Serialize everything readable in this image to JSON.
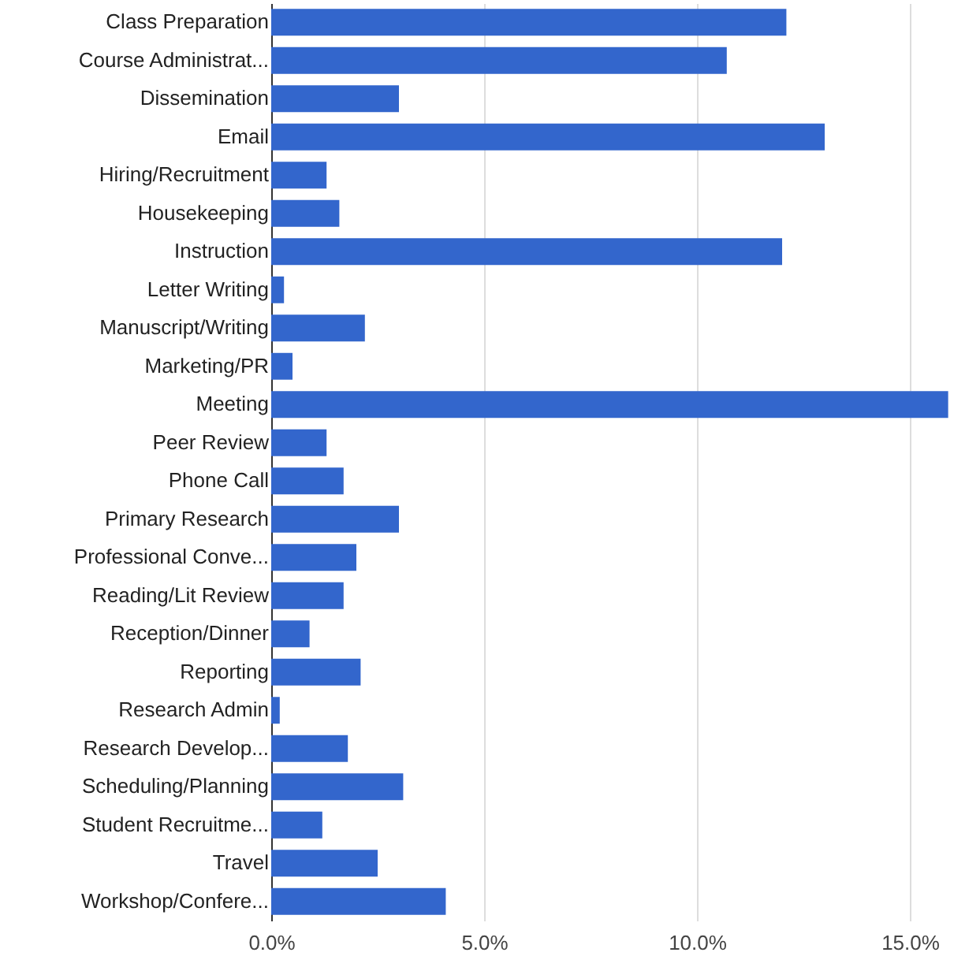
{
  "chart_data": {
    "type": "bar",
    "orientation": "horizontal",
    "color": "#3366cc",
    "categories": [
      "Class Preparation",
      "Course Administrat...",
      "Dissemination",
      "Email",
      "Hiring/Recruitment",
      "Housekeeping",
      "Instruction",
      "Letter Writing",
      "Manuscript/Writing",
      "Marketing/PR",
      "Meeting",
      "Peer Review",
      "Phone Call",
      "Primary Research",
      "Professional Conve...",
      "Reading/Lit Review",
      "Reception/Dinner",
      "Reporting",
      "Research Admin",
      "Research Develop...",
      "Scheduling/Planning",
      "Student Recruitme...",
      "Travel",
      "Workshop/Confere..."
    ],
    "values": [
      12.1,
      10.7,
      3.0,
      13.0,
      1.3,
      1.6,
      12.0,
      0.3,
      2.2,
      0.5,
      15.9,
      1.3,
      1.7,
      3.0,
      2.0,
      1.7,
      0.9,
      2.1,
      0.2,
      1.8,
      3.1,
      1.2,
      2.5,
      4.1
    ],
    "xlim": [
      0,
      16
    ],
    "xticks": [
      {
        "value": 0,
        "label": "0.0%"
      },
      {
        "value": 5,
        "label": "5.0%"
      },
      {
        "value": 10,
        "label": "10.0%"
      },
      {
        "value": 15,
        "label": "15.0%"
      }
    ],
    "grid": "x"
  }
}
